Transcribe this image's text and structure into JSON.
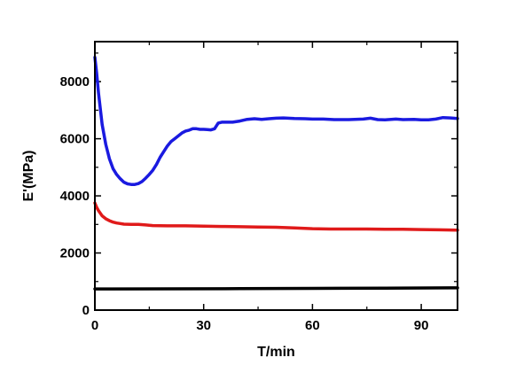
{
  "chart_data": {
    "type": "line",
    "xlabel": "T/min",
    "ylabel": "E'(MPa)",
    "xlim": [
      0,
      100
    ],
    "ylim": [
      0,
      9400
    ],
    "xticks": [
      0,
      30,
      60,
      90
    ],
    "yticks": [
      0,
      2000,
      4000,
      6000,
      8000
    ],
    "xtick_labels": [
      "0",
      "30",
      "60",
      "90"
    ],
    "ytick_labels": [
      "0",
      "2000",
      "4000",
      "6000",
      "8000"
    ],
    "grid": false,
    "legend": "none",
    "series": [
      {
        "color": "#1a1ae0",
        "x": [
          0,
          0.5,
          1,
          2,
          3,
          4,
          5,
          6,
          7,
          8,
          9,
          10,
          11,
          12,
          13,
          14,
          15,
          16,
          17,
          18,
          19,
          20,
          21,
          22,
          23,
          24,
          25,
          26,
          27,
          28,
          29,
          30,
          31,
          32,
          33,
          34,
          35,
          36,
          38,
          40,
          42,
          44,
          46,
          48,
          50,
          52,
          55,
          58,
          60,
          63,
          66,
          70,
          74,
          76,
          78,
          80,
          83,
          85,
          88,
          90,
          92,
          94,
          96,
          98,
          100
        ],
        "y": [
          8850,
          8300,
          7600,
          6500,
          5800,
          5300,
          4950,
          4750,
          4600,
          4480,
          4420,
          4400,
          4400,
          4430,
          4500,
          4620,
          4750,
          4900,
          5100,
          5350,
          5550,
          5750,
          5900,
          6000,
          6100,
          6200,
          6270,
          6300,
          6350,
          6350,
          6330,
          6330,
          6320,
          6310,
          6350,
          6550,
          6580,
          6580,
          6580,
          6620,
          6680,
          6700,
          6680,
          6700,
          6720,
          6730,
          6710,
          6700,
          6690,
          6690,
          6670,
          6670,
          6690,
          6720,
          6670,
          6660,
          6690,
          6670,
          6680,
          6660,
          6660,
          6690,
          6740,
          6730,
          6710
        ]
      },
      {
        "color": "#e01a1a",
        "x": [
          0,
          0.5,
          1,
          2,
          3,
          4,
          5,
          6,
          7,
          8,
          10,
          12,
          14,
          16,
          20,
          25,
          30,
          35,
          40,
          45,
          50,
          55,
          60,
          65,
          70,
          75,
          80,
          85,
          90,
          95,
          100
        ],
        "y": [
          3750,
          3600,
          3480,
          3300,
          3200,
          3130,
          3080,
          3050,
          3030,
          3010,
          3000,
          3000,
          2980,
          2960,
          2950,
          2950,
          2940,
          2930,
          2920,
          2910,
          2900,
          2880,
          2850,
          2840,
          2840,
          2840,
          2830,
          2830,
          2820,
          2810,
          2800
        ]
      },
      {
        "color": "#000000",
        "x": [
          0,
          20,
          40,
          60,
          80,
          100
        ],
        "y": [
          740,
          745,
          750,
          760,
          770,
          780
        ]
      }
    ]
  }
}
